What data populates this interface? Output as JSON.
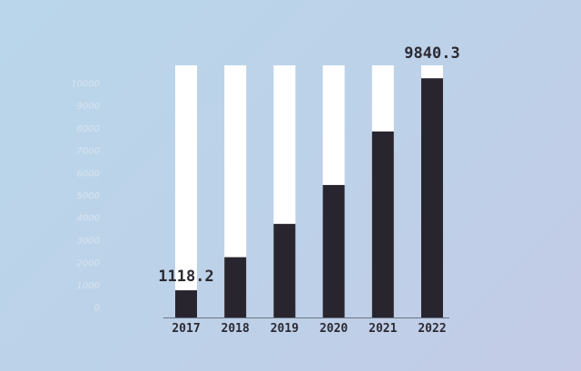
{
  "colors": {
    "bar_fill": "#28252f",
    "bar_track": "#ffffff",
    "axis_line": "#6a7480",
    "tick_text": "#d6e4f0",
    "label_text": "#2b2a33"
  },
  "chart_data": {
    "type": "bar",
    "title": "",
    "xlabel": "",
    "ylabel": "",
    "categories": [
      "2017",
      "2018",
      "2019",
      "2020",
      "2021",
      "2022"
    ],
    "values": [
      1118.2,
      2480,
      3850,
      5450,
      7650,
      9840.3
    ],
    "ylim": [
      0,
      10000
    ],
    "y_ticks": [
      "0",
      "1000",
      "2000",
      "3000",
      "4000",
      "5000",
      "6000",
      "7000",
      "8000",
      "9000",
      "10000"
    ],
    "data_labels": [
      {
        "index": 0,
        "text": "1118.2"
      },
      {
        "index": 5,
        "text": "9840.3"
      }
    ],
    "grid": false,
    "legend": "none"
  }
}
